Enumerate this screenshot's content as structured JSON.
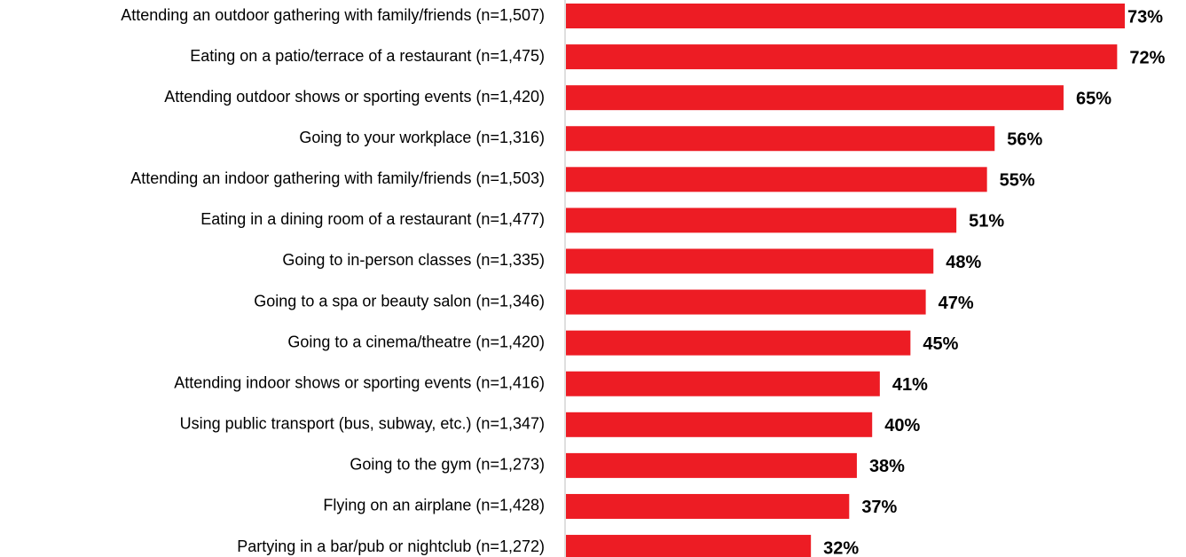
{
  "chart_data": {
    "type": "barh",
    "categories": [
      "Attending an outdoor gathering with family/friends (n=1,507)",
      "Eating on a patio/terrace of a restaurant (n=1,475)",
      "Attending outdoor shows or sporting events (n=1,420)",
      "Going to your workplace (n=1,316)",
      "Attending an indoor gathering with family/friends (n=1,503)",
      "Eating in a dining room of a restaurant (n=1,477)",
      "Going to in-person classes (n=1,335)",
      "Going to a spa or beauty salon (n=1,346)",
      "Going to a cinema/theatre (n=1,420)",
      "Attending indoor shows or sporting events (n=1,416)",
      "Using public transport (bus, subway, etc.) (n=1,347)",
      "Going to the gym (n=1,273)",
      "Flying on an airplane (n=1,428)",
      "Partying in a bar/pub or nightclub (n=1,272)"
    ],
    "values": [
      73,
      72,
      65,
      56,
      55,
      51,
      48,
      47,
      45,
      41,
      40,
      38,
      37,
      32
    ],
    "value_labels": [
      "73%",
      "72%",
      "65%",
      "56%",
      "55%",
      "51%",
      "48%",
      "47%",
      "45%",
      "41%",
      "40%",
      "38%",
      "37%",
      "32%"
    ],
    "color": "#ed1c24"
  }
}
